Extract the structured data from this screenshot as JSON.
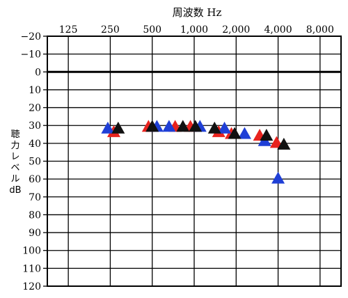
{
  "chart_data": {
    "type": "scatter",
    "title": "周波数 Hz",
    "xlabel": "周波数 Hz",
    "ylabel": "聴力レベル dB",
    "ylabel_chars": [
      "聴",
      "力",
      "レ",
      "ベ",
      "ル",
      "dB"
    ],
    "x_ticks": [
      "125",
      "250",
      "500",
      "1,000",
      "2,000",
      "4,000",
      "8,000"
    ],
    "x_tick_values": [
      125,
      250,
      500,
      1000,
      2000,
      4000,
      8000
    ],
    "x_scale": "log2",
    "x_range": [
      125,
      8000
    ],
    "y_ticks": [
      "−20",
      "−10",
      "0",
      "10",
      "20",
      "30",
      "40",
      "50",
      "60",
      "70",
      "80",
      "90",
      "100",
      "110",
      "120"
    ],
    "y_tick_values": [
      -20,
      -10,
      0,
      10,
      20,
      30,
      40,
      50,
      60,
      70,
      80,
      90,
      100,
      110,
      120
    ],
    "y_range": [
      -20,
      120
    ],
    "y_inverted": true,
    "reference_line": 0,
    "grid": true,
    "marker": "triangle",
    "series": [
      {
        "color": "#e8231e",
        "points": [
          {
            "x": 265,
            "y": 34
          },
          {
            "x": 470,
            "y": 31
          },
          {
            "x": 730,
            "y": 31
          },
          {
            "x": 940,
            "y": 31
          },
          {
            "x": 1500,
            "y": 34
          },
          {
            "x": 1850,
            "y": 35
          },
          {
            "x": 2950,
            "y": 36
          },
          {
            "x": 3900,
            "y": 40
          }
        ]
      },
      {
        "color": "#1f3fd6",
        "points": [
          {
            "x": 240,
            "y": 32
          },
          {
            "x": 540,
            "y": 31
          },
          {
            "x": 660,
            "y": 31
          },
          {
            "x": 1100,
            "y": 31
          },
          {
            "x": 1650,
            "y": 32
          },
          {
            "x": 2300,
            "y": 35
          },
          {
            "x": 3200,
            "y": 39
          },
          {
            "x": 4000,
            "y": 60
          }
        ]
      },
      {
        "color": "#111111",
        "points": [
          {
            "x": 285,
            "y": 32
          },
          {
            "x": 500,
            "y": 31
          },
          {
            "x": 830,
            "y": 31
          },
          {
            "x": 1020,
            "y": 31
          },
          {
            "x": 1400,
            "y": 32
          },
          {
            "x": 1950,
            "y": 35
          },
          {
            "x": 3300,
            "y": 36
          },
          {
            "x": 4400,
            "y": 41
          }
        ]
      }
    ]
  }
}
